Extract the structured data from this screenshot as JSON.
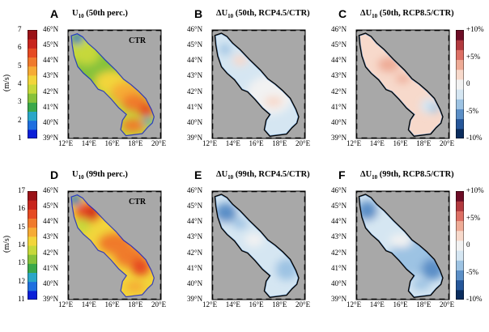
{
  "figure": {
    "panels": [
      {
        "letter": "A",
        "title_pre": "U",
        "title_sub": "10",
        "title_post": " (50th perc.)",
        "label": "CTR",
        "kind": "ctr50"
      },
      {
        "letter": "B",
        "title_pre": "ΔU",
        "title_sub": "10",
        "title_post": " (50th, RCP4.5/CTR)",
        "label": "",
        "kind": "d45_50"
      },
      {
        "letter": "C",
        "title_pre": "ΔU",
        "title_sub": "10",
        "title_post": " (50th, RCP8.5/CTR)",
        "label": "",
        "kind": "d85_50"
      },
      {
        "letter": "D",
        "title_pre": "U",
        "title_sub": "10",
        "title_post": " (99th perc.)",
        "label": "CTR",
        "kind": "ctr99"
      },
      {
        "letter": "E",
        "title_pre": "ΔU",
        "title_sub": "10",
        "title_post": " (99th, RCP4.5/CTR)",
        "label": "",
        "kind": "d45_99"
      },
      {
        "letter": "F",
        "title_pre": "ΔU",
        "title_sub": "10",
        "title_post": " (99th, RCP8.5/CTR)",
        "label": "",
        "kind": "d85_99"
      }
    ],
    "lat_ticks": [
      "46°N",
      "45°N",
      "44°N",
      "43°N",
      "42°N",
      "41°N",
      "40°N",
      "39°N"
    ],
    "lon_ticks": [
      "12°E",
      "14°E",
      "16°E",
      "18°E",
      "20°E"
    ],
    "colorbar_top": {
      "units": "(m/s)",
      "ticks": [
        "7",
        "6",
        "5",
        "4",
        "3",
        "2",
        "1"
      ]
    },
    "colorbar_bottom": {
      "units": "(m/s)",
      "ticks": [
        "17",
        "16",
        "15",
        "14",
        "13",
        "12",
        "11"
      ]
    },
    "colorbar_diff": {
      "ticks": [
        "+10%",
        "+5%",
        "0",
        "-5%",
        "-10%"
      ]
    },
    "colors": {
      "land": "#a8a8a8",
      "speed_scale": [
        "#0a1fd8",
        "#1e6fe0",
        "#2aa7c8",
        "#3aa84a",
        "#86c23a",
        "#c6d83a",
        "#f2d53a",
        "#f6ab35",
        "#f07a2c",
        "#e64a22",
        "#c8241c",
        "#9b1217"
      ],
      "diff_scale": [
        "#0b2d5e",
        "#26579a",
        "#5b8fc7",
        "#9dc3e3",
        "#d5e6f2",
        "#f2f2f2",
        "#f7d9cb",
        "#eeab96",
        "#dd7065",
        "#b23a3f",
        "#6d0d26"
      ]
    }
  }
}
